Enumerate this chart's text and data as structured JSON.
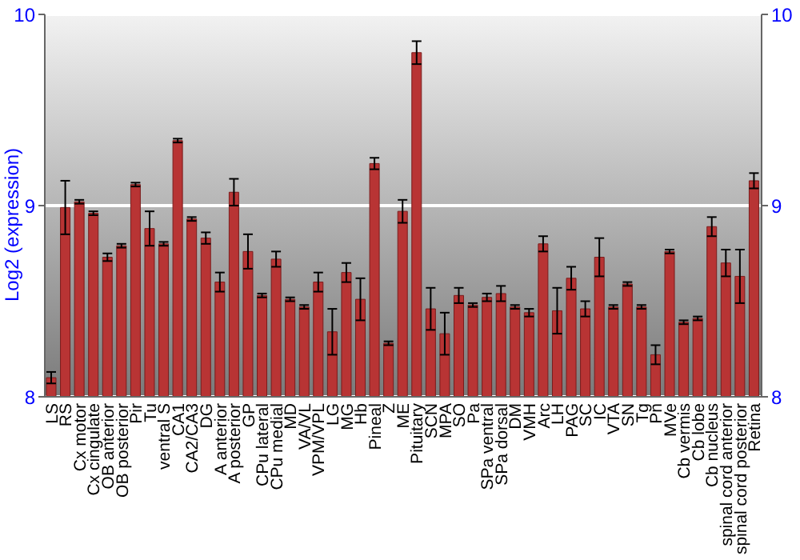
{
  "chart_data": {
    "type": "bar",
    "ylabel": "Log2 (expression)",
    "categories": [
      "LS",
      "RS",
      "Cx motor",
      "Cx cingulate",
      "OB anterior",
      "OB posterior",
      "Pir",
      "Tu",
      "ventral S",
      "CA1",
      "CA2/CA3",
      "DG",
      "A anterior",
      "A posterior",
      "GP",
      "CPu lateral",
      "CPu medial",
      "MD",
      "VA/VL",
      "VPM/VPL",
      "LG",
      "MG",
      "Hb",
      "Pineal",
      "Z",
      "ME",
      "Pituitary",
      "SCN",
      "MPA",
      "SO",
      "Pa",
      "SPa ventral",
      "SPa dorsal",
      "DM",
      "VMH",
      "Arc",
      "LH",
      "PAG",
      "SC",
      "IC",
      "VTA",
      "SN",
      "Tg",
      "Pn",
      "MVe",
      "Cb vermis",
      "Cb lobe",
      "Cb nucleus",
      "spinal cord anterior",
      "spinal cord posterior",
      "Retina"
    ],
    "values": [
      8.1,
      8.99,
      9.02,
      8.96,
      8.73,
      8.79,
      9.11,
      8.88,
      8.8,
      9.34,
      8.93,
      8.83,
      8.6,
      9.07,
      8.76,
      8.53,
      8.72,
      8.51,
      8.47,
      8.6,
      8.34,
      8.65,
      8.51,
      9.22,
      8.28,
      8.97,
      9.8,
      8.46,
      8.33,
      8.53,
      8.48,
      8.52,
      8.54,
      8.47,
      8.44,
      8.8,
      8.45,
      8.62,
      8.46,
      8.73,
      8.47,
      8.59,
      8.47,
      8.22,
      8.76,
      8.39,
      8.41,
      8.89,
      8.7,
      8.63,
      9.13
    ],
    "errors": [
      0.03,
      0.14,
      0.01,
      0.01,
      0.02,
      0.01,
      0.01,
      0.09,
      0.01,
      0.01,
      0.01,
      0.03,
      0.05,
      0.07,
      0.09,
      0.01,
      0.04,
      0.01,
      0.01,
      0.05,
      0.12,
      0.05,
      0.11,
      0.03,
      0.01,
      0.06,
      0.06,
      0.11,
      0.11,
      0.04,
      0.01,
      0.02,
      0.04,
      0.01,
      0.02,
      0.04,
      0.12,
      0.06,
      0.04,
      0.1,
      0.01,
      0.01,
      0.01,
      0.05,
      0.01,
      0.01,
      0.01,
      0.05,
      0.07,
      0.14,
      0.04
    ],
    "color": "#b83434",
    "ylim": [
      8,
      10
    ],
    "yticks": [
      8,
      9,
      10
    ],
    "y2lim": [
      8,
      10
    ],
    "y2ticks": [
      8,
      9,
      10
    ],
    "grid": "y"
  }
}
